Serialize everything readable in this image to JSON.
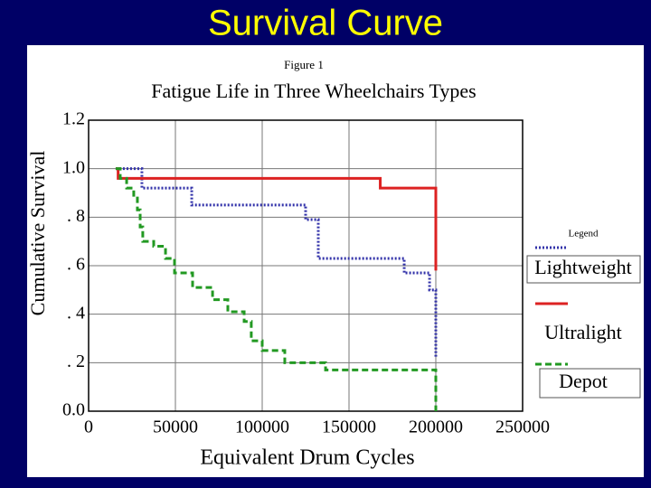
{
  "slide_title": "Survival Curve",
  "chart_data": {
    "type": "line",
    "step": true,
    "figure_label": "Figure 1",
    "title": "Fatigue Life in Three Wheelchairs Types",
    "x_label": "Equivalent Drum Cycles",
    "y_label": "Cumulative Survival",
    "legend_title": "Legend",
    "legend_position": "right",
    "grid": true,
    "xlim": [
      0,
      250000
    ],
    "xticks": [
      0,
      50000,
      100000,
      150000,
      200000,
      250000
    ],
    "ylim": [
      0,
      1.2
    ],
    "yticks": [
      1.2,
      {
        "value": 1.0,
        "label": "1.0"
      },
      {
        "value": 0.8,
        "label": ". 8"
      },
      {
        "value": 0.6,
        "label": ". 6"
      },
      {
        "value": 0.4,
        "label": ". 4"
      },
      {
        "value": 0.2,
        "label": ". 2"
      },
      {
        "value": 0,
        "label": "0.0"
      }
    ],
    "series": [
      {
        "name": "Lightweight",
        "color": "#3333aa",
        "dash": "2,2",
        "x": [
          15600,
          30700,
          59400,
          125000,
          132300,
          181800,
          196400,
          200000
        ],
        "values": [
          1.0,
          0.92,
          0.85,
          0.79,
          0.63,
          0.57,
          0.5,
          0.22
        ]
      },
      {
        "name": "Ultralight",
        "color": "#dd2222",
        "dash": "none",
        "x": [
          15600,
          17000,
          168000,
          200000
        ],
        "values": [
          1.0,
          0.96,
          0.92,
          0.58
        ]
      },
      {
        "name": "Depot",
        "color": "#229922",
        "dash": "7,4",
        "x": [
          15600,
          18200,
          21900,
          26000,
          28100,
          29700,
          31200,
          37500,
          44300,
          49500,
          59900,
          71400,
          80200,
          89600,
          93700,
          100000,
          113000,
          136500,
          200000
        ],
        "values": [
          1.0,
          0.96,
          0.92,
          0.89,
          0.83,
          0.76,
          0.7,
          0.68,
          0.63,
          0.57,
          0.51,
          0.46,
          0.41,
          0.37,
          0.29,
          0.25,
          0.2,
          0.17,
          0
        ]
      }
    ]
  }
}
